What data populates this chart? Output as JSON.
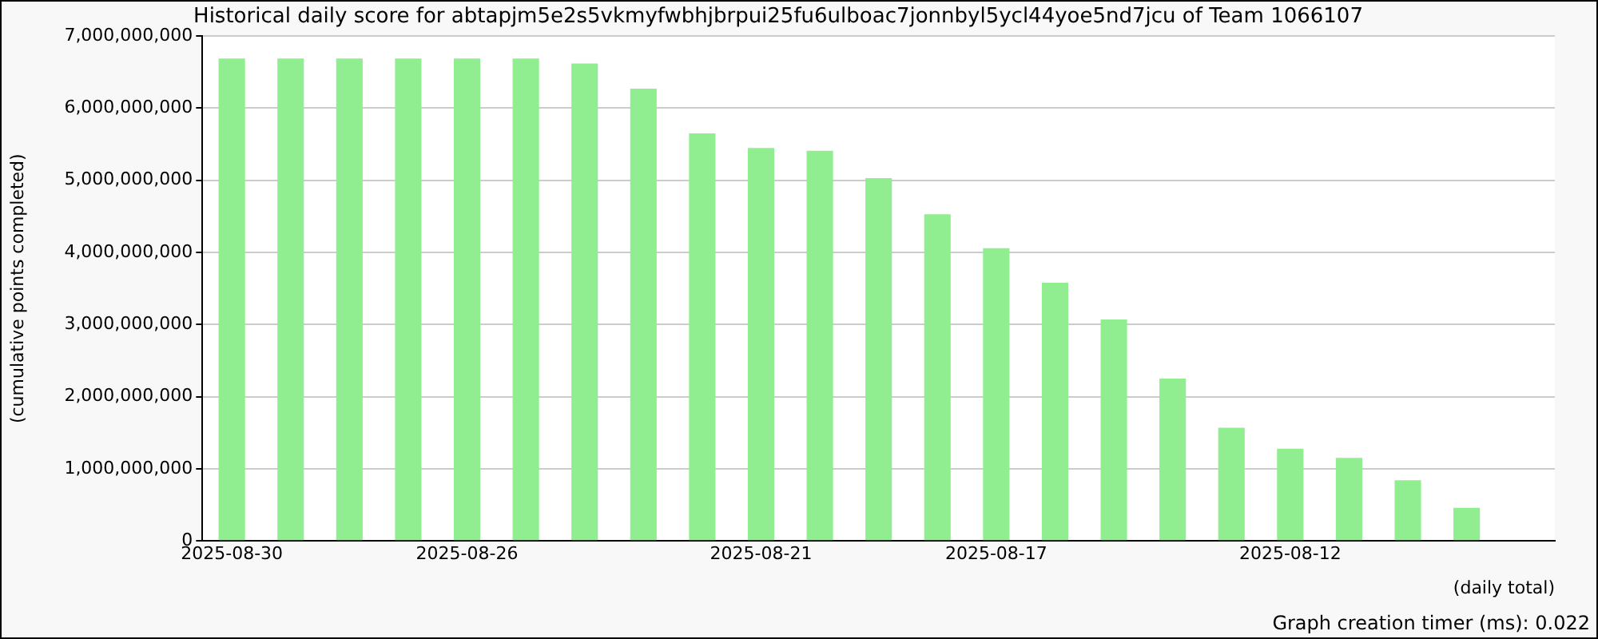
{
  "chart_data": {
    "type": "bar",
    "title": "Historical daily score for abtapjm5e2s5vkmyfwbhjbrpui25fu6ulboac7jonnbyl5ycl44yoe5nd7jcu of Team 1066107",
    "xlabel": "(daily total)",
    "ylabel": "(cumulative points completed)",
    "categories": [
      "2025-08-30",
      null,
      null,
      null,
      "2025-08-26",
      null,
      null,
      null,
      null,
      "2025-08-21",
      null,
      null,
      null,
      "2025-08-17",
      null,
      null,
      null,
      null,
      "2025-08-12",
      null,
      null,
      null,
      null
    ],
    "values": [
      6690000000,
      6690000000,
      6690000000,
      6690000000,
      6690000000,
      6690000000,
      6620000000,
      6270000000,
      5650000000,
      5450000000,
      5410000000,
      5030000000,
      4530000000,
      4060000000,
      3580000000,
      3070000000,
      2250000000,
      1570000000,
      1280000000,
      1150000000,
      840000000,
      460000000,
      null
    ],
    "color": "#90ee90",
    "ylim": [
      0,
      7000000000
    ],
    "yticks": [
      0,
      {
        "value": 1000000000,
        "label": "1,000,000,000"
      },
      {
        "value": 2000000000,
        "label": "2,000,000,000"
      },
      {
        "value": 3000000000,
        "label": "3,000,000,000"
      },
      {
        "value": 4000000000,
        "label": "4,000,000,000"
      },
      {
        "value": 5000000000,
        "label": "5,000,000,000"
      },
      {
        "value": 6000000000,
        "label": "6,000,000,000"
      },
      {
        "value": 7000000000,
        "label": "7,000,000,000"
      }
    ],
    "grid": "y",
    "legend": false,
    "annotations": [
      "Graph creation timer (ms): 0.022"
    ]
  }
}
